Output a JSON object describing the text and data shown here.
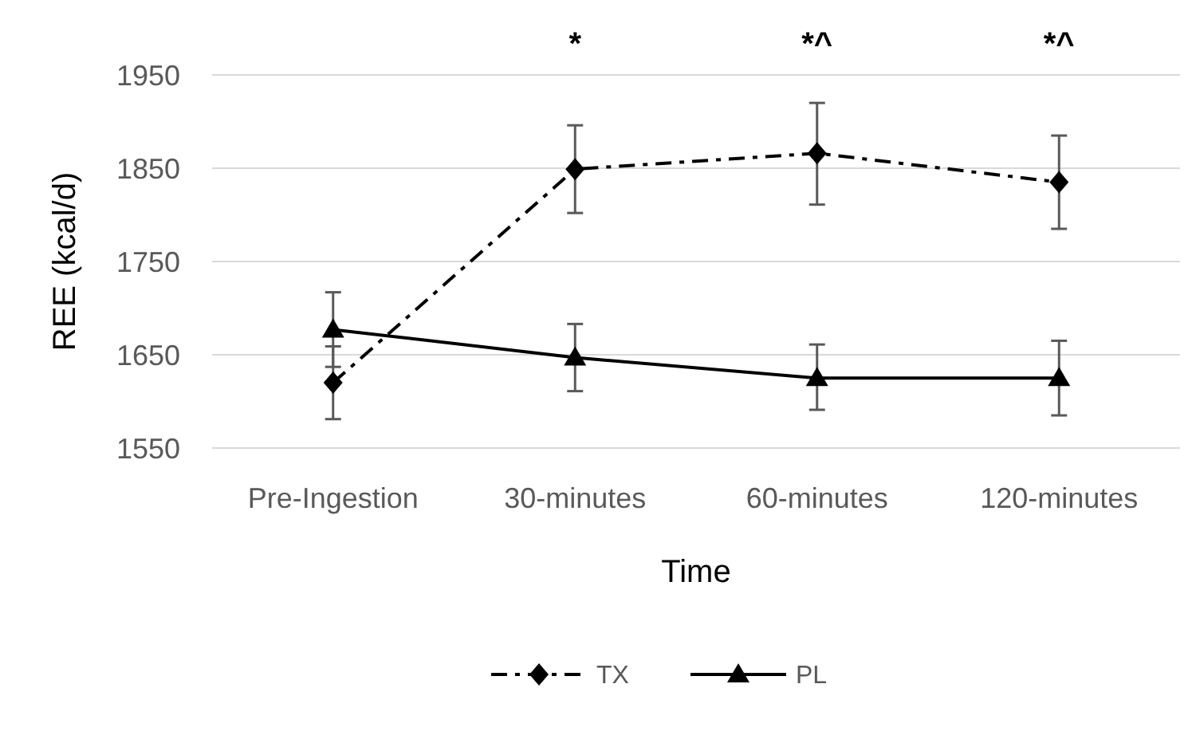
{
  "chart_data": {
    "type": "line",
    "xlabel": "Time",
    "ylabel": "REE (kcal/d)",
    "categories": [
      "Pre-Ingestion",
      "30-minutes",
      "60-minutes",
      "120-minutes"
    ],
    "series": [
      {
        "name": "TX",
        "color": "#000000",
        "values": [
          1620,
          1849,
          1866,
          1835
        ],
        "errors": [
          [
            1581,
            1659
          ],
          [
            1802,
            1896
          ],
          [
            1811,
            1920
          ],
          [
            1785,
            1885
          ]
        ],
        "marker": "diamond",
        "line_style": "dashed"
      },
      {
        "name": "PL",
        "color": "#000000",
        "values": [
          1677,
          1647,
          1625,
          1625
        ],
        "errors": [
          [
            1637,
            1717
          ],
          [
            1611,
            1683
          ],
          [
            1591,
            1661
          ],
          [
            1585,
            1665
          ]
        ],
        "marker": "triangle",
        "line_style": "solid"
      }
    ],
    "ylim": [
      1550,
      1950
    ],
    "yticks": [
      1550,
      1650,
      1750,
      1850,
      1950
    ],
    "grid": "y",
    "legend": "bottom",
    "annotations": [
      "*",
      "*^",
      "*^"
    ]
  }
}
